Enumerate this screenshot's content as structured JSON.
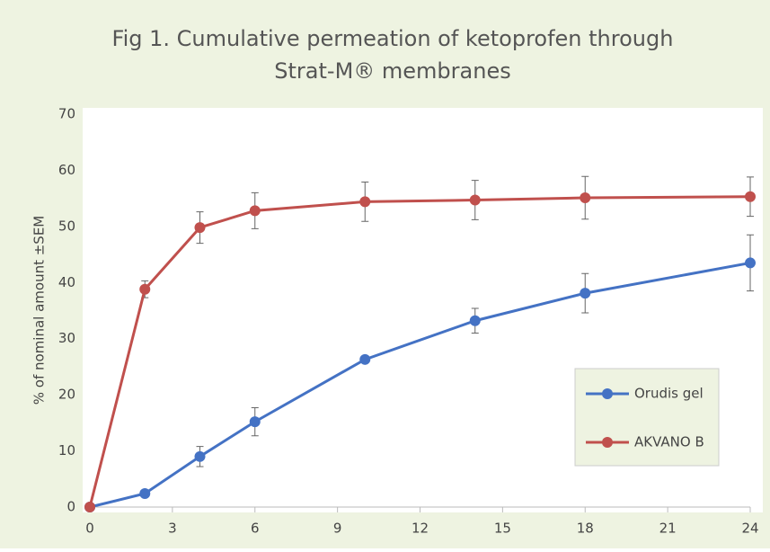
{
  "chart_data": {
    "type": "line",
    "title": [
      "Fig 1. Cumulative permeation of ketoprofen through",
      "Strat-M® membranes"
    ],
    "y_label": "% of nominal amount ±SEM",
    "x": [
      0,
      2,
      4,
      6,
      10,
      14,
      18,
      24
    ],
    "series": [
      {
        "name": "Orudis gel",
        "color": "#4472c4",
        "values": [
          0,
          2.4,
          9,
          15.2,
          26.3,
          33.2,
          38.1,
          43.5
        ],
        "errors": [
          0,
          0.5,
          1.8,
          2.5,
          0.6,
          2.2,
          3.5,
          5
        ]
      },
      {
        "name": "AKVANO B",
        "color": "#c0504d",
        "values": [
          0,
          38.8,
          49.8,
          52.8,
          54.4,
          54.7,
          55.1,
          55.3
        ],
        "errors": [
          0,
          1.5,
          2.8,
          3.2,
          3.5,
          3.5,
          3.8,
          3.5
        ]
      }
    ],
    "xlim": [
      0,
      24
    ],
    "xticks": [
      0,
      3,
      6,
      9,
      12,
      15,
      18,
      21,
      24
    ],
    "ylim": [
      0,
      70
    ],
    "yticks": [
      0,
      10,
      20,
      30,
      40,
      50,
      60,
      70
    ],
    "grid": false,
    "legend": "lower-right"
  }
}
